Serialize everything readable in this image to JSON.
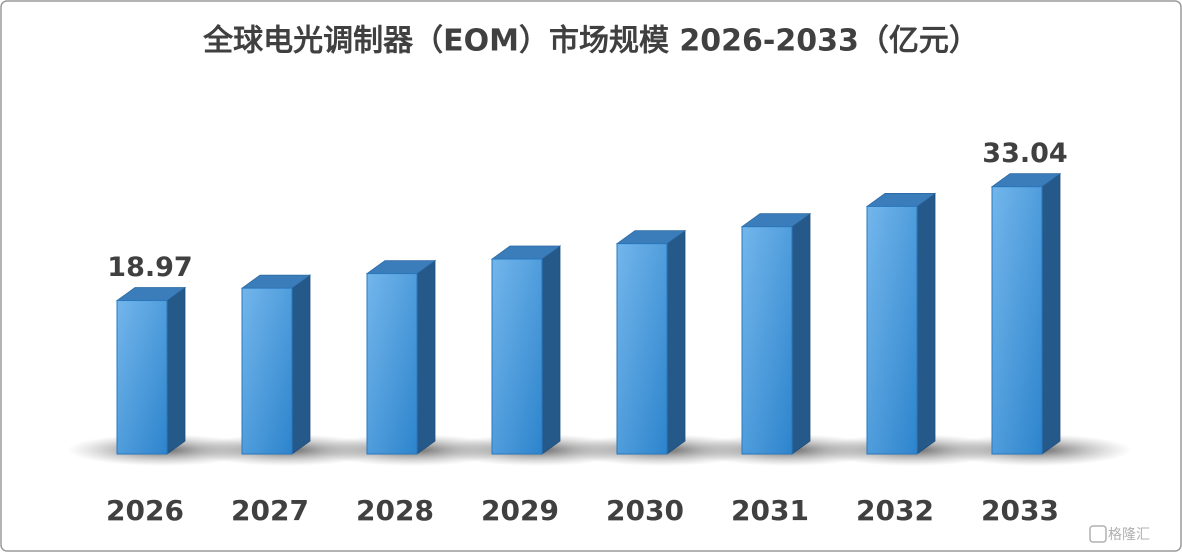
{
  "chart_data": {
    "type": "bar3d",
    "title": "全球电光调制器（EOM）市场规模 2026-2033（亿元）",
    "categories": [
      "2026",
      "2027",
      "2028",
      "2029",
      "2030",
      "2031",
      "2032",
      "2033"
    ],
    "values": [
      18.97,
      20.5,
      22.3,
      24.1,
      26.0,
      28.1,
      30.6,
      33.04
    ],
    "value_labels": [
      "18.97",
      null,
      null,
      null,
      null,
      null,
      null,
      "33.04"
    ],
    "color": "#4a9be0",
    "watermark": "格隆汇"
  }
}
